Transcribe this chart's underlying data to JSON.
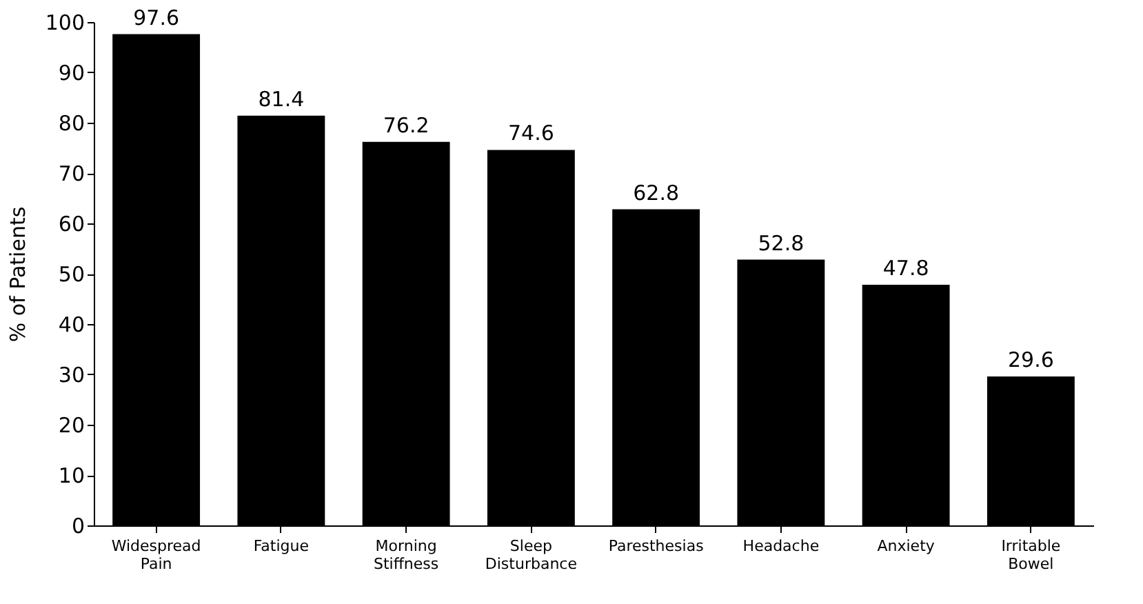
{
  "chart_data": {
    "type": "bar",
    "ylabel": "% of Patients",
    "categories": [
      "Widespread\nPain",
      "Fatigue",
      "Morning\nStiffness",
      "Sleep\nDisturbance",
      "Paresthesias",
      "Headache",
      "Anxiety",
      "Irritable\nBowel"
    ],
    "values": [
      97.6,
      81.4,
      76.2,
      74.6,
      62.8,
      52.8,
      47.8,
      29.6
    ],
    "color": "#000000",
    "ylim": [
      0,
      100
    ],
    "yticks": [
      0,
      10,
      20,
      30,
      40,
      50,
      60,
      70,
      80,
      90,
      100
    ],
    "grid": false,
    "data_labels": true
  }
}
